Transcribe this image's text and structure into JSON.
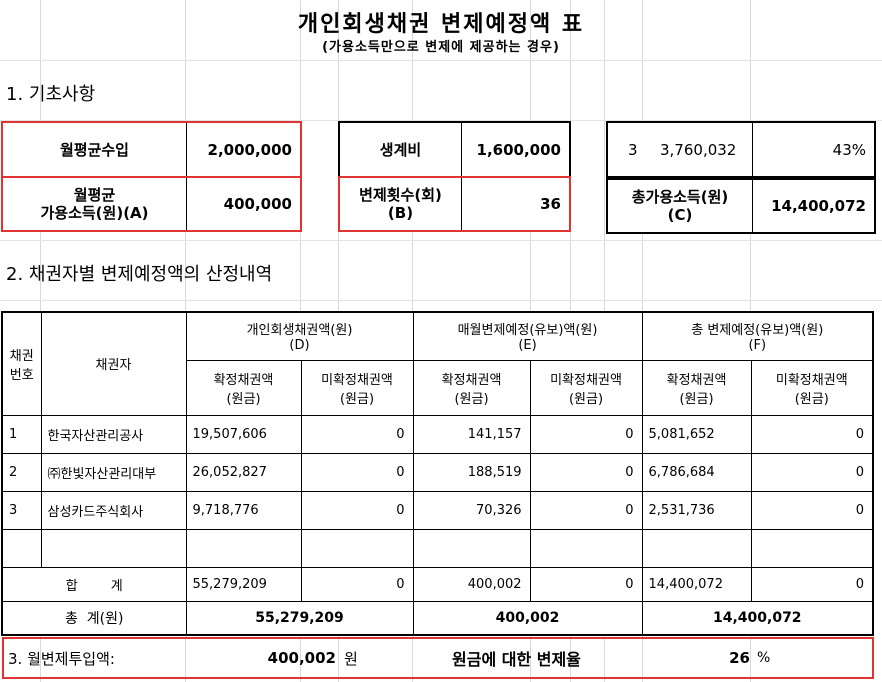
{
  "title": "개인회생채권 변제예정액 표",
  "subtitle": "(가용소득만으로 변제에 제공하는 경우)",
  "section1": "1. 기초사항",
  "section2": "2. 채권자별 변제예정액의 산정내역",
  "basics": {
    "monthly_income_label": "월평균수입",
    "monthly_income_value": "2,000,000",
    "avail_income_label_1": "월평균",
    "avail_income_label_2": "가용소득(원)(A)",
    "avail_income_value": "400,000",
    "living_cost_label": "생계비",
    "living_cost_value": "1,600,000",
    "installments_label_1": "변제횟수(회)",
    "installments_label_2": "(B)",
    "installments_value": "36",
    "small_num": "3",
    "small_amount": "3,760,032",
    "percent": "43%",
    "total_avail_label_1": "총가용소득(원)",
    "total_avail_label_2": "(C)",
    "total_avail_value": "14,400,072"
  },
  "table": {
    "col_no_1": "채권",
    "col_no_2": "번호",
    "col_creditor": "채권자",
    "group_d_1": "개인회생채권액(원)",
    "group_d_2": "(D)",
    "group_e_1": "매월변제예정(유보)액(원)",
    "group_e_2": "(E)",
    "group_f_1": "총 변제예정(유보)액(원)",
    "group_f_2": "(F)",
    "sub_confirmed_1": "확정채권액",
    "sub_confirmed_2": "(원금)",
    "sub_unconfirmed_1": "미확정채권액",
    "sub_unconfirmed_2": "(원금)",
    "rows": [
      {
        "no": "1",
        "creditor": "한국자산관리공사",
        "d1": "19,507,606",
        "d2": "0",
        "e1": "141,157",
        "e2": "0",
        "f1": "5,081,652",
        "f2": "0"
      },
      {
        "no": "2",
        "creditor": "㈜한빛자산관리대부",
        "d1": "26,052,827",
        "d2": "0",
        "e1": "188,519",
        "e2": "0",
        "f1": "6,786,684",
        "f2": "0"
      },
      {
        "no": "3",
        "creditor": "삼성카드주식회사",
        "d1": "9,718,776",
        "d2": "0",
        "e1": "70,326",
        "e2": "0",
        "f1": "2,531,736",
        "f2": "0"
      }
    ],
    "sum_label": "합        계",
    "sum": {
      "d1": "55,279,209",
      "d2": "0",
      "e1": "400,002",
      "e2": "0",
      "f1": "14,400,072",
      "f2": "0"
    },
    "total_label": "총  계(원)",
    "total": {
      "d": "55,279,209",
      "e": "400,002",
      "f": "14,400,072"
    }
  },
  "footer": {
    "label": "3. 월변제투입액:",
    "amount": "400,002",
    "unit": "원",
    "ratio_label": "원금에 대한 변제율",
    "ratio_value": "26",
    "ratio_unit": "%"
  }
}
